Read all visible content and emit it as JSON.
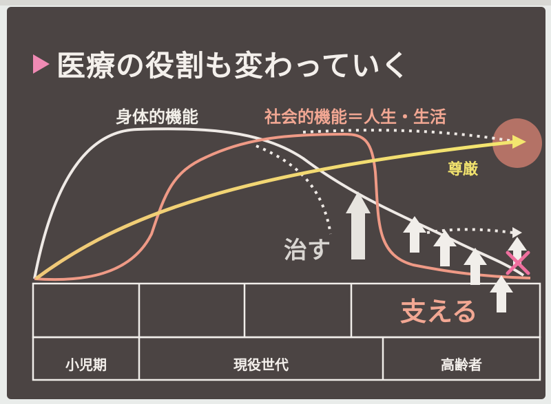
{
  "title": "医療の役割も変わっていく",
  "labels": {
    "physical": "身体的機能",
    "social": "社会的機能＝人生・生活",
    "dignity": "尊厳",
    "cure": "治す",
    "support": "支える"
  },
  "age_groups": [
    "小児期",
    "現役世代",
    "高齢者"
  ],
  "colors": {
    "board": "#4b4443",
    "physical_curve": "#efeae6",
    "social_curve": "#ef9a86",
    "dignity_arrow": "#f0df6a",
    "title_marker": "#f08ab4",
    "cross": "#ef6f9e"
  }
}
